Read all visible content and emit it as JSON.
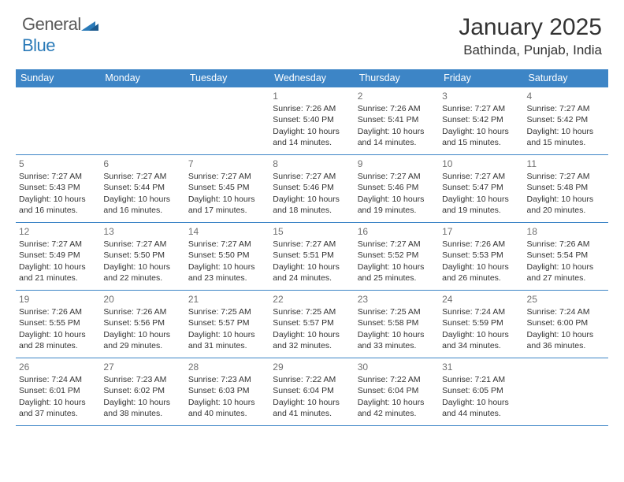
{
  "logo": {
    "text_gray": "General",
    "text_blue": "Blue"
  },
  "title": "January 2025",
  "location": "Bathinda, Punjab, India",
  "day_headers": [
    "Sunday",
    "Monday",
    "Tuesday",
    "Wednesday",
    "Thursday",
    "Friday",
    "Saturday"
  ],
  "colors": {
    "header_bg": "#3d85c6",
    "header_fg": "#ffffff",
    "border": "#3d85c6",
    "daynum": "#707070",
    "text": "#333333",
    "logo_gray": "#5a5a5a",
    "logo_blue": "#2a7ab8"
  },
  "typography": {
    "title_fontsize": 30,
    "location_fontsize": 17,
    "header_fontsize": 12.5,
    "cell_fontsize": 10.5,
    "daynum_fontsize": 12
  },
  "weeks": [
    [
      {
        "day": "",
        "sunrise": "",
        "sunset": "",
        "daylight": ""
      },
      {
        "day": "",
        "sunrise": "",
        "sunset": "",
        "daylight": ""
      },
      {
        "day": "",
        "sunrise": "",
        "sunset": "",
        "daylight": ""
      },
      {
        "day": "1",
        "sunrise": "Sunrise: 7:26 AM",
        "sunset": "Sunset: 5:40 PM",
        "daylight": "Daylight: 10 hours and 14 minutes."
      },
      {
        "day": "2",
        "sunrise": "Sunrise: 7:26 AM",
        "sunset": "Sunset: 5:41 PM",
        "daylight": "Daylight: 10 hours and 14 minutes."
      },
      {
        "day": "3",
        "sunrise": "Sunrise: 7:27 AM",
        "sunset": "Sunset: 5:42 PM",
        "daylight": "Daylight: 10 hours and 15 minutes."
      },
      {
        "day": "4",
        "sunrise": "Sunrise: 7:27 AM",
        "sunset": "Sunset: 5:42 PM",
        "daylight": "Daylight: 10 hours and 15 minutes."
      }
    ],
    [
      {
        "day": "5",
        "sunrise": "Sunrise: 7:27 AM",
        "sunset": "Sunset: 5:43 PM",
        "daylight": "Daylight: 10 hours and 16 minutes."
      },
      {
        "day": "6",
        "sunrise": "Sunrise: 7:27 AM",
        "sunset": "Sunset: 5:44 PM",
        "daylight": "Daylight: 10 hours and 16 minutes."
      },
      {
        "day": "7",
        "sunrise": "Sunrise: 7:27 AM",
        "sunset": "Sunset: 5:45 PM",
        "daylight": "Daylight: 10 hours and 17 minutes."
      },
      {
        "day": "8",
        "sunrise": "Sunrise: 7:27 AM",
        "sunset": "Sunset: 5:46 PM",
        "daylight": "Daylight: 10 hours and 18 minutes."
      },
      {
        "day": "9",
        "sunrise": "Sunrise: 7:27 AM",
        "sunset": "Sunset: 5:46 PM",
        "daylight": "Daylight: 10 hours and 19 minutes."
      },
      {
        "day": "10",
        "sunrise": "Sunrise: 7:27 AM",
        "sunset": "Sunset: 5:47 PM",
        "daylight": "Daylight: 10 hours and 19 minutes."
      },
      {
        "day": "11",
        "sunrise": "Sunrise: 7:27 AM",
        "sunset": "Sunset: 5:48 PM",
        "daylight": "Daylight: 10 hours and 20 minutes."
      }
    ],
    [
      {
        "day": "12",
        "sunrise": "Sunrise: 7:27 AM",
        "sunset": "Sunset: 5:49 PM",
        "daylight": "Daylight: 10 hours and 21 minutes."
      },
      {
        "day": "13",
        "sunrise": "Sunrise: 7:27 AM",
        "sunset": "Sunset: 5:50 PM",
        "daylight": "Daylight: 10 hours and 22 minutes."
      },
      {
        "day": "14",
        "sunrise": "Sunrise: 7:27 AM",
        "sunset": "Sunset: 5:50 PM",
        "daylight": "Daylight: 10 hours and 23 minutes."
      },
      {
        "day": "15",
        "sunrise": "Sunrise: 7:27 AM",
        "sunset": "Sunset: 5:51 PM",
        "daylight": "Daylight: 10 hours and 24 minutes."
      },
      {
        "day": "16",
        "sunrise": "Sunrise: 7:27 AM",
        "sunset": "Sunset: 5:52 PM",
        "daylight": "Daylight: 10 hours and 25 minutes."
      },
      {
        "day": "17",
        "sunrise": "Sunrise: 7:26 AM",
        "sunset": "Sunset: 5:53 PM",
        "daylight": "Daylight: 10 hours and 26 minutes."
      },
      {
        "day": "18",
        "sunrise": "Sunrise: 7:26 AM",
        "sunset": "Sunset: 5:54 PM",
        "daylight": "Daylight: 10 hours and 27 minutes."
      }
    ],
    [
      {
        "day": "19",
        "sunrise": "Sunrise: 7:26 AM",
        "sunset": "Sunset: 5:55 PM",
        "daylight": "Daylight: 10 hours and 28 minutes."
      },
      {
        "day": "20",
        "sunrise": "Sunrise: 7:26 AM",
        "sunset": "Sunset: 5:56 PM",
        "daylight": "Daylight: 10 hours and 29 minutes."
      },
      {
        "day": "21",
        "sunrise": "Sunrise: 7:25 AM",
        "sunset": "Sunset: 5:57 PM",
        "daylight": "Daylight: 10 hours and 31 minutes."
      },
      {
        "day": "22",
        "sunrise": "Sunrise: 7:25 AM",
        "sunset": "Sunset: 5:57 PM",
        "daylight": "Daylight: 10 hours and 32 minutes."
      },
      {
        "day": "23",
        "sunrise": "Sunrise: 7:25 AM",
        "sunset": "Sunset: 5:58 PM",
        "daylight": "Daylight: 10 hours and 33 minutes."
      },
      {
        "day": "24",
        "sunrise": "Sunrise: 7:24 AM",
        "sunset": "Sunset: 5:59 PM",
        "daylight": "Daylight: 10 hours and 34 minutes."
      },
      {
        "day": "25",
        "sunrise": "Sunrise: 7:24 AM",
        "sunset": "Sunset: 6:00 PM",
        "daylight": "Daylight: 10 hours and 36 minutes."
      }
    ],
    [
      {
        "day": "26",
        "sunrise": "Sunrise: 7:24 AM",
        "sunset": "Sunset: 6:01 PM",
        "daylight": "Daylight: 10 hours and 37 minutes."
      },
      {
        "day": "27",
        "sunrise": "Sunrise: 7:23 AM",
        "sunset": "Sunset: 6:02 PM",
        "daylight": "Daylight: 10 hours and 38 minutes."
      },
      {
        "day": "28",
        "sunrise": "Sunrise: 7:23 AM",
        "sunset": "Sunset: 6:03 PM",
        "daylight": "Daylight: 10 hours and 40 minutes."
      },
      {
        "day": "29",
        "sunrise": "Sunrise: 7:22 AM",
        "sunset": "Sunset: 6:04 PM",
        "daylight": "Daylight: 10 hours and 41 minutes."
      },
      {
        "day": "30",
        "sunrise": "Sunrise: 7:22 AM",
        "sunset": "Sunset: 6:04 PM",
        "daylight": "Daylight: 10 hours and 42 minutes."
      },
      {
        "day": "31",
        "sunrise": "Sunrise: 7:21 AM",
        "sunset": "Sunset: 6:05 PM",
        "daylight": "Daylight: 10 hours and 44 minutes."
      },
      {
        "day": "",
        "sunrise": "",
        "sunset": "",
        "daylight": ""
      }
    ]
  ]
}
